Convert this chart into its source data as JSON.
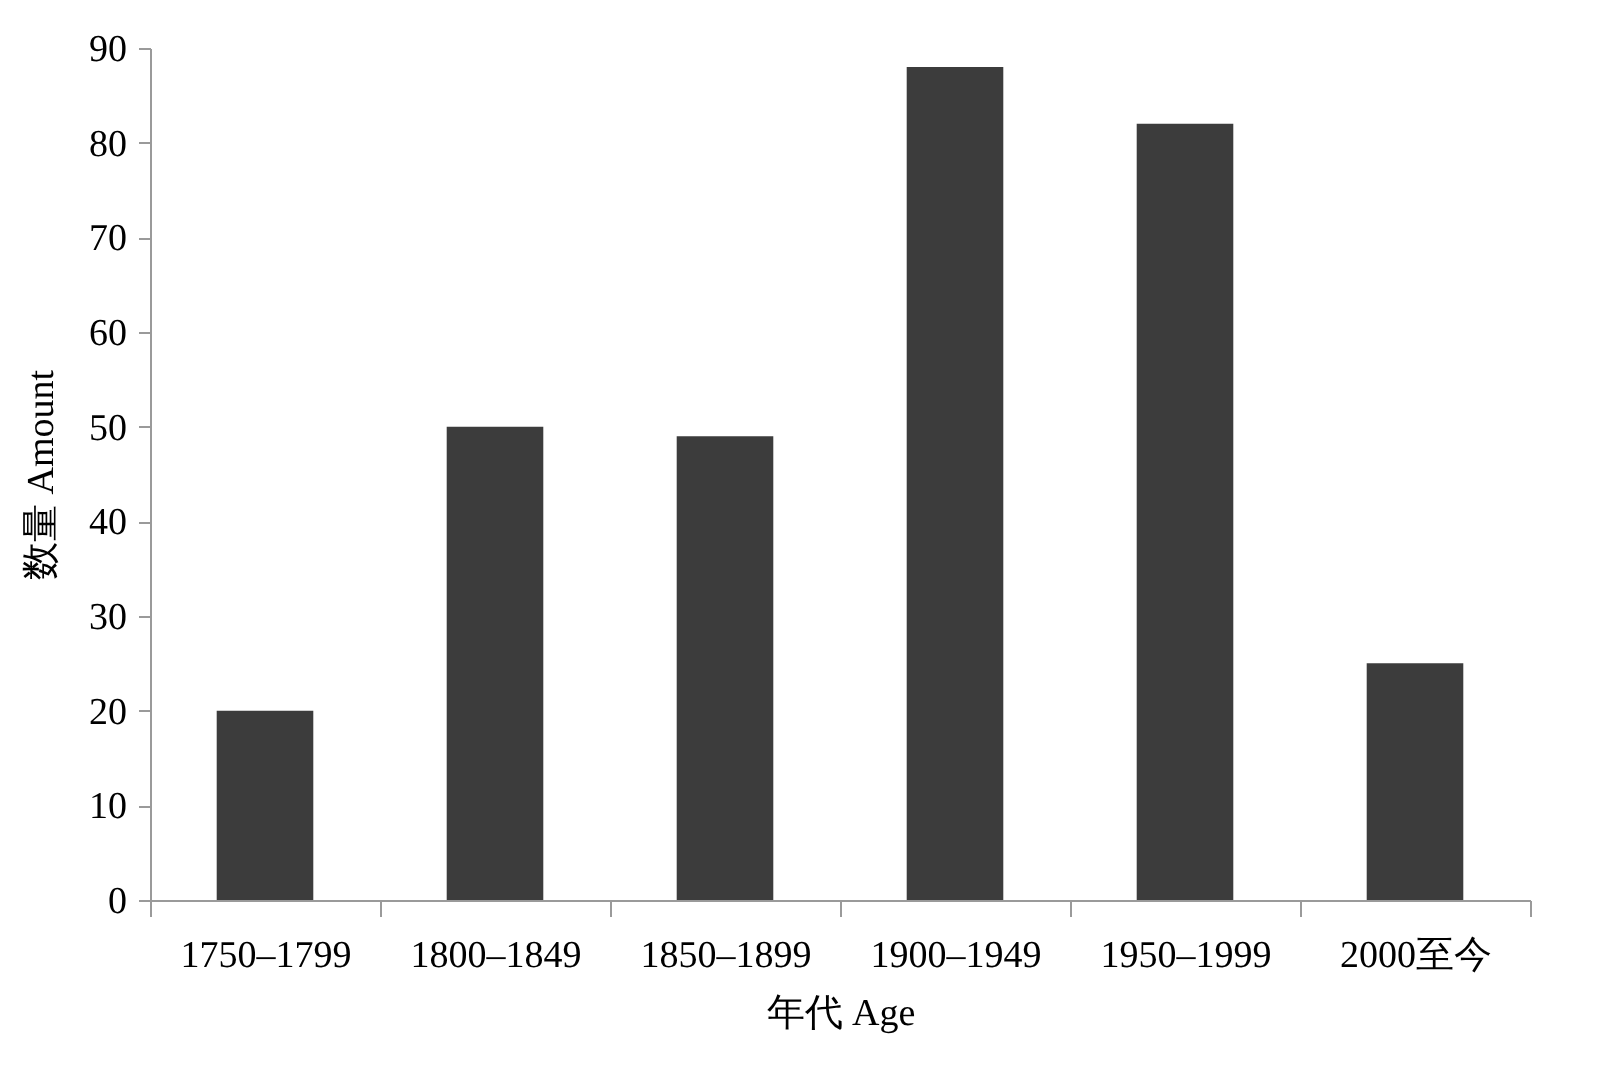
{
  "chart_data": {
    "type": "bar",
    "xlabel": "年代 Age",
    "ylabel": "数量 Amount",
    "categories": [
      "1750–1799",
      "1800–1849",
      "1850–1899",
      "1900–1949",
      "1950–1999",
      "2000至今"
    ],
    "values": [
      20,
      50,
      49,
      88,
      82,
      25
    ],
    "color": "#3c3c3c",
    "ylim": [
      0,
      90
    ],
    "yticks": [
      0,
      10,
      20,
      30,
      40,
      50,
      60,
      70,
      80,
      90
    ],
    "grid": false
  }
}
